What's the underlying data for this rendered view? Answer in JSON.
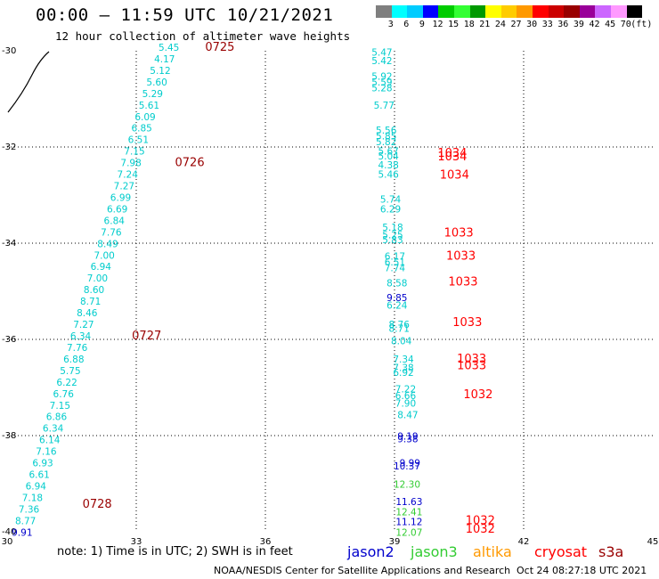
{
  "title": "00:00 — 11:59 UTC 10/21/2021",
  "subtitle": "12 hour collection of altimeter wave heights",
  "colorbar": {
    "colors": [
      "#7f7f7f",
      "#00ffff",
      "#00ccff",
      "#0000ff",
      "#00cc00",
      "#33ff33",
      "#009900",
      "#ffff00",
      "#ffcc00",
      "#ff9900",
      "#ff0000",
      "#cc0000",
      "#990000",
      "#990099",
      "#cc66ff",
      "#ff99ff",
      "#000000"
    ],
    "labels": [
      "3",
      "6",
      "9",
      "12",
      "15",
      "18",
      "21",
      "24",
      "27",
      "30",
      "33",
      "36",
      "39",
      "42",
      "45",
      "70",
      "(ft)"
    ]
  },
  "axes": {
    "lon_ticks": [
      "30",
      "33",
      "36",
      "39",
      "42",
      "45"
    ],
    "lat_ticks": [
      "-30",
      "-32",
      "-34",
      "-36",
      "-38",
      "-40"
    ]
  },
  "note": "note: 1) Time is in UTC; 2) SWH is in feet",
  "legend": [
    {
      "name": "jason2",
      "color": "#0000cc"
    },
    {
      "name": "jason3",
      "color": "#33cc33"
    },
    {
      "name": "altika",
      "color": "#ff9900"
    },
    {
      "name": "cryosat",
      "color": "#ff0000"
    },
    {
      "name": "s3a",
      "color": "#990000"
    }
  ],
  "footer_left": "NOAA/NESDIS Center for Satellite Applications and Research",
  "footer_right": "Oct 24 08:27:18 UTC 2021",
  "colors": {
    "cyan": "#00cccc",
    "blue": "#0000cc",
    "green": "#33cc33",
    "red": "#ff0000",
    "darkred": "#990000"
  },
  "chart_data": {
    "type": "scatter",
    "title": "00:00 — 11:59 UTC 10/21/2021",
    "subtitle": "12 hour collection of altimeter wave heights",
    "xlim": [
      30,
      45
    ],
    "ylim": [
      -40,
      -30
    ],
    "x_ticks": [
      30,
      33,
      36,
      39,
      42,
      45
    ],
    "y_ticks": [
      -30,
      -32,
      -34,
      -36,
      -38,
      -40
    ],
    "grid": true,
    "units": "ft",
    "track1_swh": [
      {
        "lon": 34.0,
        "lat": -30.0,
        "v": "5.45",
        "c": "cyan"
      },
      {
        "lon": 33.9,
        "lat": -30.24,
        "v": "4.17",
        "c": "cyan"
      },
      {
        "lon": 33.8,
        "lat": -30.48,
        "v": "5.12",
        "c": "cyan"
      },
      {
        "lon": 33.72,
        "lat": -30.72,
        "v": "5.60",
        "c": "cyan"
      },
      {
        "lon": 33.62,
        "lat": -30.96,
        "v": "5.29",
        "c": "cyan"
      },
      {
        "lon": 33.54,
        "lat": -31.2,
        "v": "5.61",
        "c": "cyan"
      },
      {
        "lon": 33.45,
        "lat": -31.44,
        "v": "6.09",
        "c": "cyan"
      },
      {
        "lon": 33.37,
        "lat": -31.68,
        "v": "6.85",
        "c": "cyan"
      },
      {
        "lon": 33.29,
        "lat": -31.92,
        "v": "6.51",
        "c": "cyan"
      },
      {
        "lon": 33.2,
        "lat": -32.16,
        "v": "7.15",
        "c": "cyan"
      },
      {
        "lon": 33.12,
        "lat": -32.4,
        "v": "7.98",
        "c": "cyan"
      },
      {
        "lon": 33.04,
        "lat": -32.64,
        "v": "7.24",
        "c": "cyan"
      },
      {
        "lon": 32.96,
        "lat": -32.88,
        "v": "7.27",
        "c": "cyan"
      },
      {
        "lon": 32.88,
        "lat": -33.12,
        "v": "6.99",
        "c": "cyan"
      },
      {
        "lon": 32.8,
        "lat": -33.36,
        "v": "6.69",
        "c": "cyan"
      },
      {
        "lon": 32.73,
        "lat": -33.6,
        "v": "6.84",
        "c": "cyan"
      },
      {
        "lon": 32.66,
        "lat": -33.84,
        "v": "7.76",
        "c": "cyan"
      },
      {
        "lon": 32.58,
        "lat": -34.08,
        "v": "8.49",
        "c": "cyan"
      },
      {
        "lon": 32.5,
        "lat": -34.32,
        "v": "7.00",
        "c": "cyan"
      },
      {
        "lon": 32.42,
        "lat": -34.56,
        "v": "6.94",
        "c": "cyan"
      },
      {
        "lon": 32.34,
        "lat": -34.8,
        "v": "7.00",
        "c": "cyan"
      },
      {
        "lon": 32.26,
        "lat": -35.04,
        "v": "8.60",
        "c": "cyan"
      },
      {
        "lon": 32.18,
        "lat": -35.28,
        "v": "8.71",
        "c": "cyan"
      },
      {
        "lon": 32.1,
        "lat": -35.52,
        "v": "8.46",
        "c": "cyan"
      },
      {
        "lon": 32.02,
        "lat": -35.76,
        "v": "7.27",
        "c": "cyan"
      },
      {
        "lon": 31.95,
        "lat": -36.0,
        "v": "6.34",
        "c": "cyan"
      },
      {
        "lon": 31.87,
        "lat": -36.24,
        "v": "7.76",
        "c": "cyan"
      },
      {
        "lon": 31.79,
        "lat": -36.48,
        "v": "6.88",
        "c": "cyan"
      },
      {
        "lon": 31.71,
        "lat": -36.72,
        "v": "5.75",
        "c": "cyan"
      },
      {
        "lon": 31.63,
        "lat": -36.96,
        "v": "6.22",
        "c": "cyan"
      },
      {
        "lon": 31.55,
        "lat": -37.2,
        "v": "6.76",
        "c": "cyan"
      },
      {
        "lon": 31.47,
        "lat": -37.44,
        "v": "7.15",
        "c": "cyan"
      },
      {
        "lon": 31.39,
        "lat": -37.68,
        "v": "6.86",
        "c": "cyan"
      },
      {
        "lon": 31.31,
        "lat": -37.92,
        "v": "6.34",
        "c": "cyan"
      },
      {
        "lon": 31.23,
        "lat": -38.16,
        "v": "6.14",
        "c": "cyan"
      },
      {
        "lon": 31.15,
        "lat": -38.4,
        "v": "7.16",
        "c": "cyan"
      },
      {
        "lon": 31.07,
        "lat": -38.64,
        "v": "6.93",
        "c": "cyan"
      },
      {
        "lon": 30.99,
        "lat": -38.88,
        "v": "6.61",
        "c": "cyan"
      },
      {
        "lon": 30.91,
        "lat": -39.12,
        "v": "6.94",
        "c": "cyan"
      },
      {
        "lon": 30.83,
        "lat": -39.36,
        "v": "7.18",
        "c": "cyan"
      },
      {
        "lon": 30.75,
        "lat": -39.6,
        "v": "7.36",
        "c": "cyan"
      },
      {
        "lon": 30.67,
        "lat": -39.84,
        "v": "8.77",
        "c": "cyan"
      },
      {
        "lon": 30.59,
        "lat": -40.08,
        "v": "9.91",
        "c": "blue"
      }
    ],
    "track1_times": [
      {
        "lon": 34.6,
        "lat": -30.0,
        "t": "0725"
      },
      {
        "lon": 33.9,
        "lat": -32.4,
        "t": "0726"
      },
      {
        "lon": 32.9,
        "lat": -36.0,
        "t": "0727"
      },
      {
        "lon": 31.75,
        "lat": -39.5,
        "t": "0728"
      }
    ],
    "track2_swh": [
      {
        "lon": 38.95,
        "lat": -30.1,
        "v": "5.47",
        "c": "cyan"
      },
      {
        "lon": 38.95,
        "lat": -30.28,
        "v": "5.42",
        "c": "cyan"
      },
      {
        "lon": 38.95,
        "lat": -30.6,
        "v": "5.92",
        "c": "cyan"
      },
      {
        "lon": 38.95,
        "lat": -30.72,
        "v": "5.59",
        "c": "cyan"
      },
      {
        "lon": 38.95,
        "lat": -30.84,
        "v": "5.28",
        "c": "cyan"
      },
      {
        "lon": 39.0,
        "lat": -31.2,
        "v": "5.77",
        "c": "cyan"
      },
      {
        "lon": 39.05,
        "lat": -31.72,
        "v": "5.56",
        "c": "cyan"
      },
      {
        "lon": 39.05,
        "lat": -31.84,
        "v": "5.85",
        "c": "cyan"
      },
      {
        "lon": 39.05,
        "lat": -31.96,
        "v": "5.82",
        "c": "cyan"
      },
      {
        "lon": 39.1,
        "lat": -32.16,
        "v": "5.67",
        "c": "cyan"
      },
      {
        "lon": 39.1,
        "lat": -32.26,
        "v": "5.04",
        "c": "cyan"
      },
      {
        "lon": 39.1,
        "lat": -32.44,
        "v": "4.38",
        "c": "cyan"
      },
      {
        "lon": 39.1,
        "lat": -32.64,
        "v": "5.46",
        "c": "cyan"
      },
      {
        "lon": 39.15,
        "lat": -33.16,
        "v": "5.74",
        "c": "cyan"
      },
      {
        "lon": 39.15,
        "lat": -33.36,
        "v": "6.29",
        "c": "cyan"
      },
      {
        "lon": 39.2,
        "lat": -33.74,
        "v": "5.18",
        "c": "cyan"
      },
      {
        "lon": 39.2,
        "lat": -33.9,
        "v": "5.25",
        "c": "cyan"
      },
      {
        "lon": 39.2,
        "lat": -34.0,
        "v": "5.83",
        "c": "cyan"
      },
      {
        "lon": 39.25,
        "lat": -34.34,
        "v": "6.17",
        "c": "cyan"
      },
      {
        "lon": 39.25,
        "lat": -34.46,
        "v": "6.51",
        "c": "cyan"
      },
      {
        "lon": 39.25,
        "lat": -34.58,
        "v": "7.74",
        "c": "cyan"
      },
      {
        "lon": 39.3,
        "lat": -34.9,
        "v": "8.58",
        "c": "cyan"
      },
      {
        "lon": 39.3,
        "lat": -35.2,
        "v": "9.85",
        "c": "blue"
      },
      {
        "lon": 39.3,
        "lat": -35.36,
        "v": "6.24",
        "c": "cyan"
      },
      {
        "lon": 39.35,
        "lat": -35.76,
        "v": "8.76",
        "c": "cyan"
      },
      {
        "lon": 39.35,
        "lat": -35.84,
        "v": "8.71",
        "c": "cyan"
      },
      {
        "lon": 39.4,
        "lat": -36.1,
        "v": "8.04",
        "c": "cyan"
      },
      {
        "lon": 39.45,
        "lat": -36.48,
        "v": "7.34",
        "c": "cyan"
      },
      {
        "lon": 39.45,
        "lat": -36.66,
        "v": "7.38",
        "c": "cyan"
      },
      {
        "lon": 39.45,
        "lat": -36.76,
        "v": "6.92",
        "c": "cyan"
      },
      {
        "lon": 39.5,
        "lat": -37.1,
        "v": "7.22",
        "c": "cyan"
      },
      {
        "lon": 39.5,
        "lat": -37.24,
        "v": "6.66",
        "c": "cyan"
      },
      {
        "lon": 39.5,
        "lat": -37.4,
        "v": "7.90",
        "c": "cyan"
      },
      {
        "lon": 39.55,
        "lat": -37.64,
        "v": "8.47",
        "c": "cyan"
      },
      {
        "lon": 39.55,
        "lat": -38.08,
        "v": "9.19",
        "c": "blue"
      },
      {
        "lon": 39.55,
        "lat": -38.14,
        "v": "9.38",
        "c": "blue"
      },
      {
        "lon": 39.6,
        "lat": -38.64,
        "v": "9.99",
        "c": "blue"
      },
      {
        "lon": 39.6,
        "lat": -38.7,
        "v": "10.37",
        "c": "blue"
      },
      {
        "lon": 39.6,
        "lat": -39.08,
        "v": "12.30",
        "c": "green"
      },
      {
        "lon": 39.65,
        "lat": -39.44,
        "v": "11.63",
        "c": "blue"
      },
      {
        "lon": 39.65,
        "lat": -39.66,
        "v": "12.41",
        "c": "green"
      },
      {
        "lon": 39.65,
        "lat": -39.86,
        "v": "11.12",
        "c": "blue"
      },
      {
        "lon": 39.65,
        "lat": -40.08,
        "v": "12.07",
        "c": "green"
      }
    ],
    "track2_times": [
      {
        "lon": 40.0,
        "lat": -32.2,
        "t": "1034"
      },
      {
        "lon": 40.0,
        "lat": -32.28,
        "t": "1034"
      },
      {
        "lon": 40.05,
        "lat": -32.66,
        "t": "1034"
      },
      {
        "lon": 40.15,
        "lat": -33.86,
        "t": "1033"
      },
      {
        "lon": 40.2,
        "lat": -34.34,
        "t": "1033"
      },
      {
        "lon": 40.25,
        "lat": -34.88,
        "t": "1033"
      },
      {
        "lon": 40.35,
        "lat": -35.72,
        "t": "1033"
      },
      {
        "lon": 40.45,
        "lat": -36.48,
        "t": "1033"
      },
      {
        "lon": 40.45,
        "lat": -36.62,
        "t": "1033"
      },
      {
        "lon": 40.6,
        "lat": -37.22,
        "t": "1032"
      },
      {
        "lon": 40.65,
        "lat": -39.84,
        "t": "1032"
      },
      {
        "lon": 40.65,
        "lat": -40.02,
        "t": "1032"
      }
    ]
  }
}
